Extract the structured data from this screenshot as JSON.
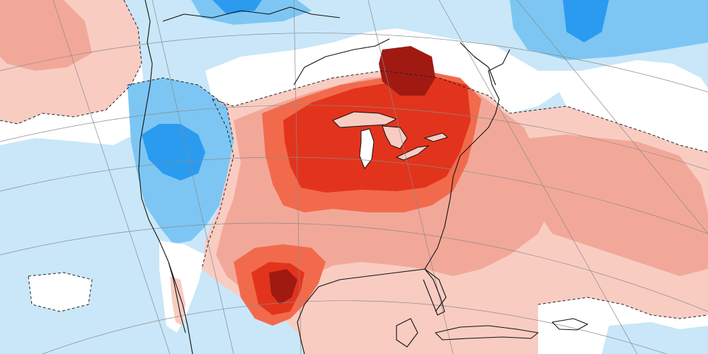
{
  "map": {
    "description_hidden": "",
    "palette": {
      "cold_strong": "#2b9bf0",
      "cold_moderate": "#7dc6f3",
      "cold_weak": "#c9e7f8",
      "neutral": "#ffffff",
      "warm_weak": "#f9ccc2",
      "warm_moderate": "#f2a899",
      "warm_strong": "#f26a4c",
      "warm_very_strong": "#e2341c",
      "warm_extreme": "#a01a12"
    },
    "features": {
      "graticule": "on",
      "coastlines": "on",
      "contour_dash": "on"
    }
  }
}
